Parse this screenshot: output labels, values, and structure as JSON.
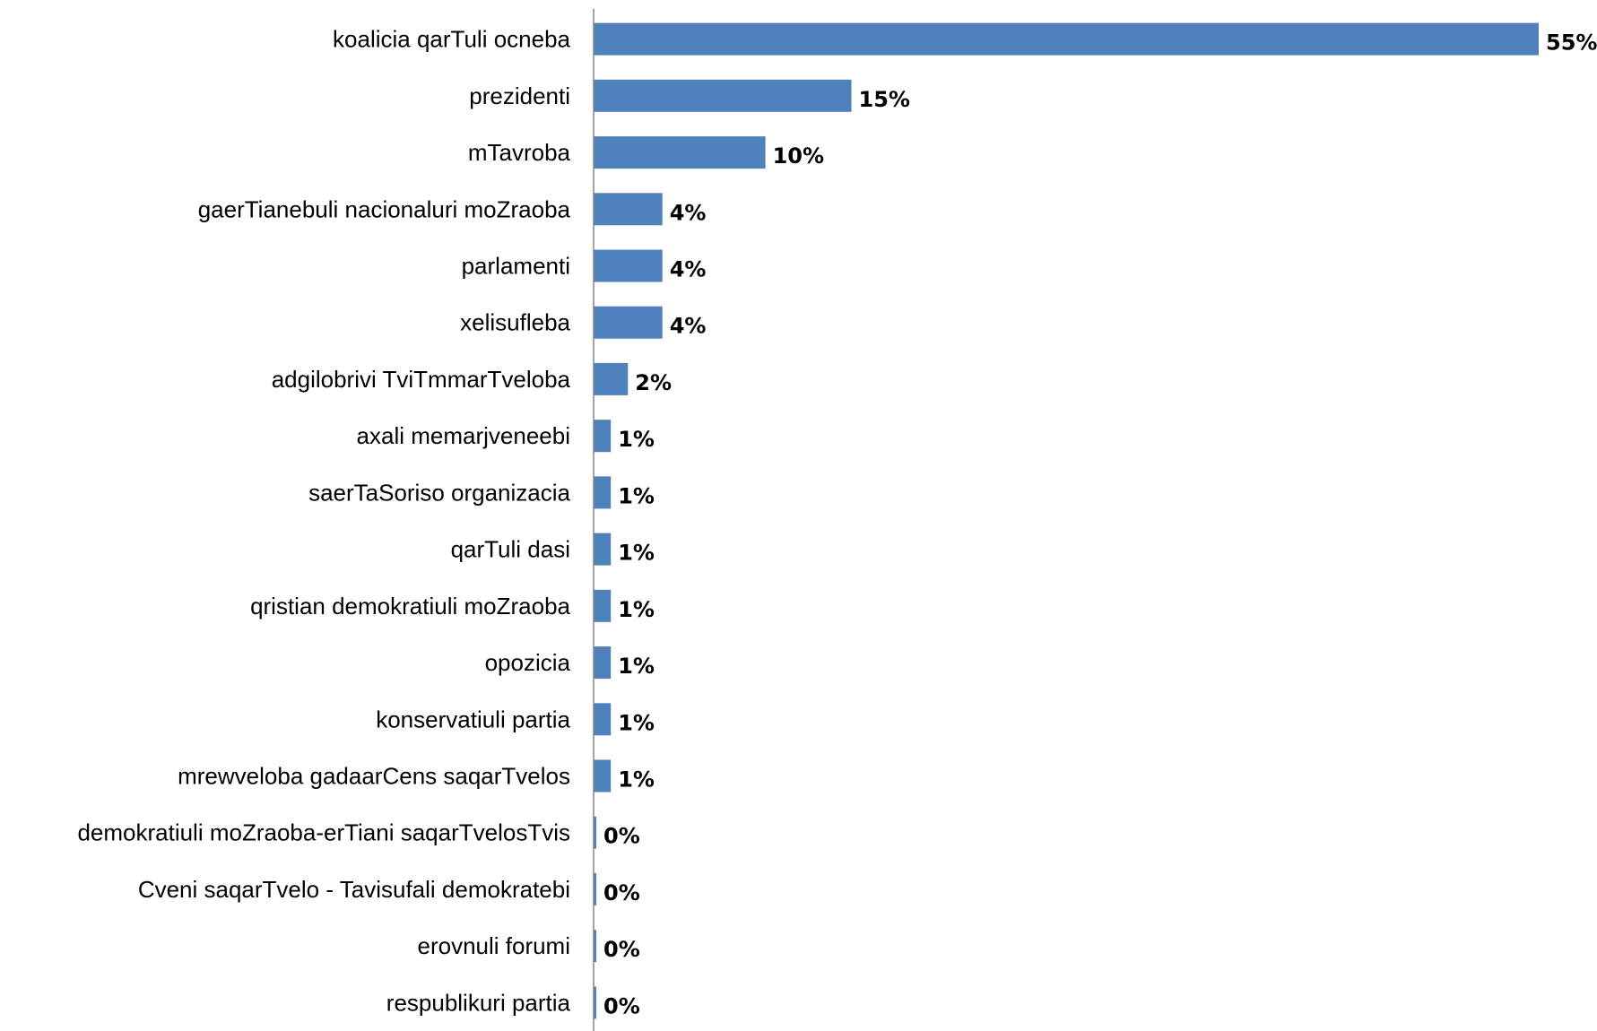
{
  "colors": {
    "bar": "#4f81bd",
    "axis": "#868686"
  },
  "chart_data": {
    "type": "bar",
    "orientation": "horizontal",
    "categories": [
      "koalicia qarTuli ocneba",
      "prezidenti",
      "mTavroba",
      "gaerTianebuli nacionaluri moZraoba",
      "parlamenti",
      "xelisufleba",
      "adgilobrivi TviTmmarTveloba",
      "axali memarjveneebi",
      "saerTaSoriso organizacia",
      "qarTuli dasi",
      "qristian demokratiuli moZraoba",
      "opozicia",
      "konservatiuli partia",
      "mrewveloba gadaarCens saqarTvelos",
      "demokratiuli moZraoba-erTiani saqarTvelosTvis",
      "Cveni saqarTvelo - Tavisufali demokratebi",
      "erovnuli forumi",
      "respublikuri partia"
    ],
    "values": [
      55,
      15,
      10,
      4,
      4,
      4,
      2,
      1,
      1,
      1,
      1,
      1,
      1,
      1,
      0,
      0,
      0,
      0
    ],
    "value_labels": [
      "55%",
      "15%",
      "10%",
      "4%",
      "4%",
      "4%",
      "2%",
      "1%",
      "1%",
      "1%",
      "1%",
      "1%",
      "1%",
      "1%",
      "0%",
      "0%",
      "0%",
      "0%"
    ],
    "xlim": [
      0,
      55
    ],
    "grid": false,
    "legend": "none"
  }
}
